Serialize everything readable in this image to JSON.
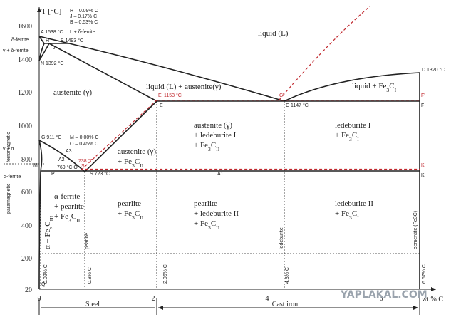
{
  "axes": {
    "y_title": "T [°C]",
    "y_ticks": [
      "1600",
      "1400",
      "1200",
      "1000",
      "800",
      "600",
      "400",
      "200",
      "20"
    ],
    "x_ticks": [
      "0",
      "2",
      "4",
      "6"
    ],
    "x_title": "wt.% C"
  },
  "notes": [
    "H – 0.09% C",
    "J – 0.17% C",
    "B – 0.53% C",
    "M – 0.00% C",
    "O – 0.45% C"
  ],
  "points": [
    "A 1538 °C",
    "H",
    "J",
    "B 1493 °C",
    "N 1392 °C",
    "E' 1153 °C",
    "E",
    "C'",
    "C 1147 °C",
    "D 1320 °C",
    "F'",
    "F",
    "G 911 °C",
    "A3",
    "A2",
    "769 °C O",
    "738 °C",
    "S'",
    "S 723 °C",
    "P",
    "M",
    "Q",
    "K'",
    "K",
    "A1"
  ],
  "regions": [
    [
      [
        "liquid (L)"
      ]
    ],
    [
      [
        "L + δ-ferrite"
      ]
    ],
    [
      [
        "δ-ferrite"
      ]
    ],
    [
      [
        "γ + δ-ferrite"
      ]
    ],
    [
      [
        "austenite (γ)"
      ]
    ],
    [
      [
        "liquid (L) + austenite(γ)"
      ]
    ],
    [
      [
        "liquid + Fe",
        {
          "sub": "3"
        },
        "C",
        {
          "sub": "I"
        }
      ]
    ],
    [
      [
        "austenite (γ)"
      ],
      [
        "+ ledeburite I"
      ],
      [
        "+ Fe",
        {
          "sub": "3"
        },
        "C",
        {
          "sub": "II"
        }
      ]
    ],
    [
      [
        "ledeburite I"
      ],
      [
        "+ Fe",
        {
          "sub": "3"
        },
        "C",
        {
          "sub": "I"
        }
      ]
    ],
    [
      [
        "austenite (γ)"
      ],
      [
        "+ Fe",
        {
          "sub": "3"
        },
        "C",
        {
          "sub": "II"
        }
      ]
    ],
    [
      [
        "γ + α"
      ]
    ],
    [
      [
        "α-ferrite"
      ]
    ],
    [
      [
        "α-ferrite"
      ],
      [
        "+ pearlite"
      ],
      [
        "+ Fe",
        {
          "sub": "3"
        },
        "C",
        {
          "sub": "III"
        }
      ]
    ],
    [
      [
        "pearlite"
      ],
      [
        "+ Fe",
        {
          "sub": "3"
        },
        "C",
        {
          "sub": "II"
        }
      ]
    ],
    [
      [
        "pearlite"
      ],
      [
        "+ ledeburite II"
      ],
      [
        "+ Fe",
        {
          "sub": "3"
        },
        "C",
        {
          "sub": "II"
        }
      ]
    ],
    [
      [
        "ledeburite II"
      ],
      [
        "+ Fe",
        {
          "sub": "3"
        },
        "C",
        {
          "sub": "I"
        }
      ]
    ],
    [
      [
        "α + Fe",
        {
          "sub": "3"
        },
        "C",
        {
          "sub": "III"
        }
      ]
    ]
  ],
  "vertical_labels": [
    "0.02% C",
    "0.8% C",
    "2.06% C",
    "4.3% C",
    "6.67% C",
    "pearlite",
    "ledeburite",
    "cementite (Fe3C)"
  ],
  "magnetism": [
    "ferromagnetic",
    "paramagnetic"
  ],
  "ranges": [
    "Steel",
    "Cast iron"
  ],
  "watermark": "YAPLAKAL.COM"
}
